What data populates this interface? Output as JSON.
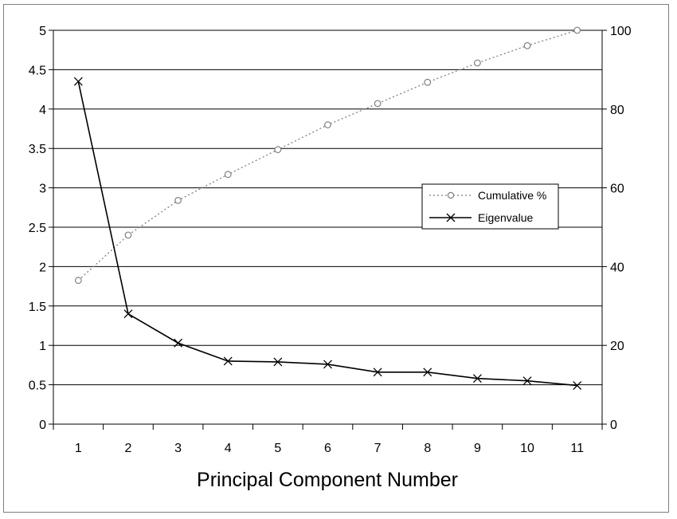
{
  "chart_data": {
    "type": "line",
    "title": "",
    "xlabel": "Principal Component Number",
    "x": [
      1,
      2,
      3,
      4,
      5,
      6,
      7,
      8,
      9,
      10,
      11
    ],
    "xlim": [
      0.5,
      11.5
    ],
    "y_left": {
      "ylim": [
        0,
        5
      ],
      "ticks": [
        0,
        0.5,
        1,
        1.5,
        2,
        2.5,
        3,
        3.5,
        4,
        4.5,
        5
      ],
      "label": ""
    },
    "y_right": {
      "ylim": [
        0,
        100
      ],
      "ticks": [
        0,
        20,
        40,
        60,
        80,
        100
      ],
      "label": ""
    },
    "series": [
      {
        "name": "Cumulative %",
        "axis": "right",
        "marker": "circle",
        "line_style": "dotted",
        "color": "#808080",
        "values": [
          36.5,
          48.0,
          56.8,
          63.4,
          69.7,
          76.0,
          81.4,
          86.8,
          91.7,
          96.1,
          100.0
        ]
      },
      {
        "name": "Eigenvalue",
        "axis": "left",
        "marker": "x",
        "line_style": "solid",
        "color": "#000000",
        "values": [
          4.35,
          1.4,
          1.03,
          0.8,
          0.79,
          0.76,
          0.66,
          0.66,
          0.58,
          0.55,
          0.49
        ]
      }
    ],
    "grid": {
      "major_horizontal": true,
      "color": "#000000"
    },
    "legend": {
      "position": "center-right",
      "entries": [
        "Cumulative %",
        "Eigenvalue"
      ]
    }
  }
}
